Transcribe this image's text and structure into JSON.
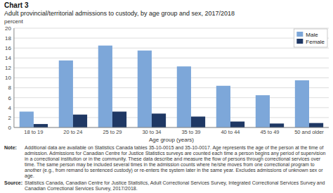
{
  "chart_data": {
    "type": "bar",
    "title": "Chart 3",
    "subtitle": "Adult provincial/territorial admissions to custody, by age group and sex, 2017/2018",
    "ylabel": "percent",
    "xlabel": "Age group (years)",
    "categories": [
      "18 to 19",
      "20 to 24",
      "25 to 29",
      "30 to 34",
      "35 to 39",
      "40 to 44",
      "45 to 49",
      "50 and older"
    ],
    "series": [
      {
        "name": "Male",
        "color": "#7da7d9",
        "values": [
          3.2,
          13.5,
          16.5,
          15.5,
          12.3,
          8.4,
          6.5,
          9.5
        ]
      },
      {
        "name": "Female",
        "color": "#1f3864",
        "values": [
          0.7,
          2.6,
          3.2,
          2.8,
          2.2,
          1.2,
          0.8,
          0.9
        ]
      }
    ],
    "ylim": [
      0,
      20
    ],
    "yticks": [
      0,
      2,
      4,
      6,
      8,
      10,
      12,
      14,
      16,
      18,
      20
    ],
    "grid": true,
    "legend": "upper-right",
    "note_label": "Note:",
    "note": "Additional data are available on Statistics Canada tables 35-10-0015 and 35-10-0017. Age represents the age of the person at the time of admission. Admissions for Canadian Centre for Justice Statistics surveys are counted each time a person begins any period of supervision in a correctional institution or in the community. These data describe and measure the flow of persons through correctional services over time. The same person may be included several times in the admission counts where he/she moves from one correctional program to another (e.g., from remand to sentenced custody) or re-enters the system later in the same year. Excludes admissions of unknown sex or age.",
    "source_label": "Source:",
    "source": "Statistics Canada, Canadian Centre for Justice Statistics, Adult Correctional Services Survey, Integrated Correctional Services Survey and Canadian Correctional Services Survey, 2017/2018."
  }
}
